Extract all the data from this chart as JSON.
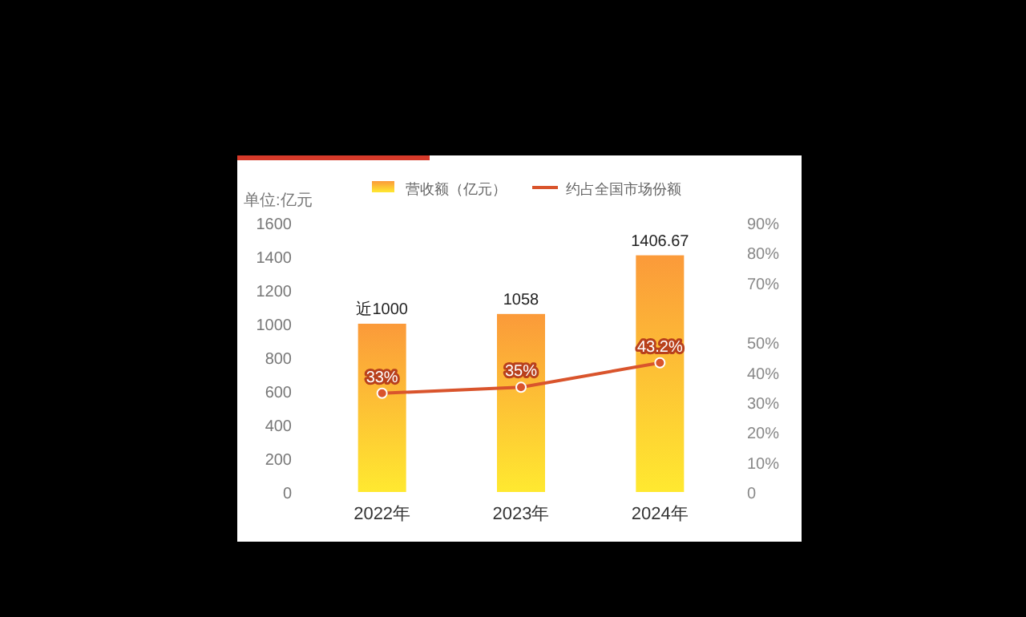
{
  "chart_data": {
    "type": "bar",
    "categories": [
      "2022年",
      "2023年",
      "2024年"
    ],
    "ylabel": "单位:亿元",
    "ylim": [
      0,
      1600
    ],
    "yticks": [
      0,
      200,
      400,
      600,
      800,
      1000,
      1200,
      1400,
      1600
    ],
    "y2lim": [
      0,
      90
    ],
    "y2ticks": [
      0,
      {
        "value": 10,
        "label": "10%"
      },
      {
        "value": 20,
        "label": "20%"
      },
      {
        "value": 30,
        "label": "30%"
      },
      {
        "value": 40,
        "label": "40%"
      },
      {
        "value": 50,
        "label": "50%"
      },
      {
        "value": 70,
        "label": "70%"
      },
      {
        "value": 80,
        "label": "80%"
      },
      {
        "value": 90,
        "label": "90%"
      }
    ],
    "legend": "top",
    "series": [
      {
        "name": "营收额（亿元）",
        "color": "#fb9a3a",
        "values": [
          1000,
          1058,
          1406.67
        ],
        "value_labels": [
          "近1000",
          "1058",
          "1406.67"
        ]
      },
      {
        "name": "约占全国市场份额",
        "type": "line",
        "axis": "y2",
        "color": "#d9542c",
        "marker": "circle",
        "values": [
          33,
          35,
          43.2
        ],
        "value_labels": [
          "33%",
          "35%",
          "43.2%"
        ]
      }
    ]
  }
}
